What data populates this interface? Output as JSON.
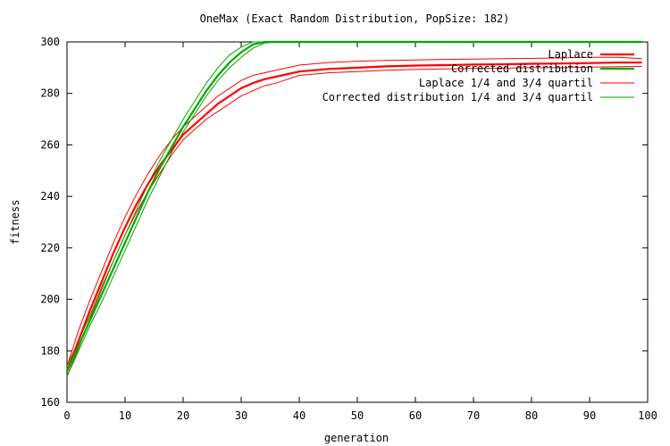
{
  "chart_data": {
    "type": "line",
    "title": "OneMax (Exact Random Distribution, PopSize: 182)",
    "xlabel": "generation",
    "ylabel": "fitness",
    "xlim": [
      0,
      100
    ],
    "ylim": [
      160,
      300
    ],
    "xticks": [
      0,
      10,
      20,
      30,
      40,
      50,
      60,
      70,
      80,
      90,
      100
    ],
    "yticks": [
      160,
      180,
      200,
      220,
      240,
      260,
      280,
      300
    ],
    "grid": false,
    "legend_position": "top-right",
    "series": [
      {
        "name": "Laplace",
        "color": "#ff0000",
        "width": "thick",
        "x": [
          0,
          2,
          4,
          6,
          8,
          10,
          12,
          14,
          16,
          18,
          20,
          22,
          24,
          26,
          28,
          30,
          32,
          34,
          36,
          38,
          40,
          45,
          50,
          55,
          60,
          65,
          70,
          75,
          80,
          85,
          90,
          95,
          99
        ],
        "y": [
          172,
          184,
          196,
          207,
          218,
          228,
          237,
          245,
          252,
          258,
          264,
          268,
          272,
          276,
          279,
          282,
          284,
          285.5,
          286.5,
          287.5,
          288.5,
          289.5,
          290,
          290.5,
          290.8,
          291,
          291.2,
          291.3,
          291.5,
          291.6,
          291.8,
          292,
          292
        ]
      },
      {
        "name": "Corrected distribution",
        "color": "#00aa00",
        "width": "thick",
        "x": [
          0,
          2,
          4,
          6,
          8,
          10,
          12,
          14,
          16,
          18,
          20,
          22,
          24,
          26,
          28,
          30,
          32,
          34,
          36,
          40,
          50,
          60,
          70,
          80,
          90,
          99
        ],
        "y": [
          172,
          182,
          192,
          202,
          212,
          222,
          232,
          242,
          251,
          259,
          267,
          274,
          281,
          287,
          292,
          296,
          299,
          300,
          300,
          300,
          300,
          300,
          300,
          300,
          300,
          300
        ]
      },
      {
        "name": "Laplace 1/4 and 3/4 quartil",
        "color": "#ff0000",
        "width": "thin",
        "x": [
          0,
          2,
          4,
          6,
          8,
          10,
          12,
          14,
          16,
          18,
          20,
          22,
          24,
          26,
          28,
          30,
          32,
          34,
          36,
          38,
          40,
          45,
          50,
          55,
          60,
          65,
          70,
          75,
          80,
          85,
          90,
          95,
          99
        ],
        "y_lower": [
          170,
          181,
          193,
          204,
          215,
          225,
          234,
          242,
          249,
          256,
          262,
          266,
          270,
          273,
          276,
          279,
          281,
          283,
          284,
          285.5,
          287,
          288,
          288.5,
          289,
          289.3,
          289.5,
          289.7,
          289.8,
          290,
          290,
          290.2,
          290.4,
          290.5
        ],
        "y_upper": [
          174,
          188,
          200,
          211,
          222,
          232,
          241,
          249,
          256,
          262,
          267,
          271,
          275,
          279,
          282,
          285,
          287,
          288,
          289,
          290,
          291,
          292,
          292.5,
          292.8,
          293,
          293.2,
          293.3,
          293.5,
          293.6,
          293.8,
          294,
          294,
          293.5
        ]
      },
      {
        "name": "Corrected distribution 1/4 and 3/4 quartil",
        "color": "#00aa00",
        "width": "thin",
        "x": [
          0,
          2,
          4,
          6,
          8,
          10,
          12,
          14,
          16,
          18,
          20,
          22,
          24,
          26,
          28,
          30,
          32,
          34,
          36,
          40,
          50,
          60,
          70,
          80,
          90,
          99
        ],
        "y_lower": [
          170,
          180,
          190,
          199,
          209,
          219,
          229,
          239,
          248,
          257,
          265,
          272,
          279,
          285,
          290,
          294,
          297.5,
          299.5,
          300,
          300,
          300,
          300,
          300,
          300,
          300,
          300
        ],
        "y_upper": [
          174,
          184,
          194,
          205,
          215,
          225,
          235,
          245,
          254,
          262,
          270,
          277,
          284,
          290,
          295,
          298,
          300,
          300,
          300,
          300,
          300,
          300,
          300,
          300,
          300,
          300
        ]
      }
    ]
  }
}
